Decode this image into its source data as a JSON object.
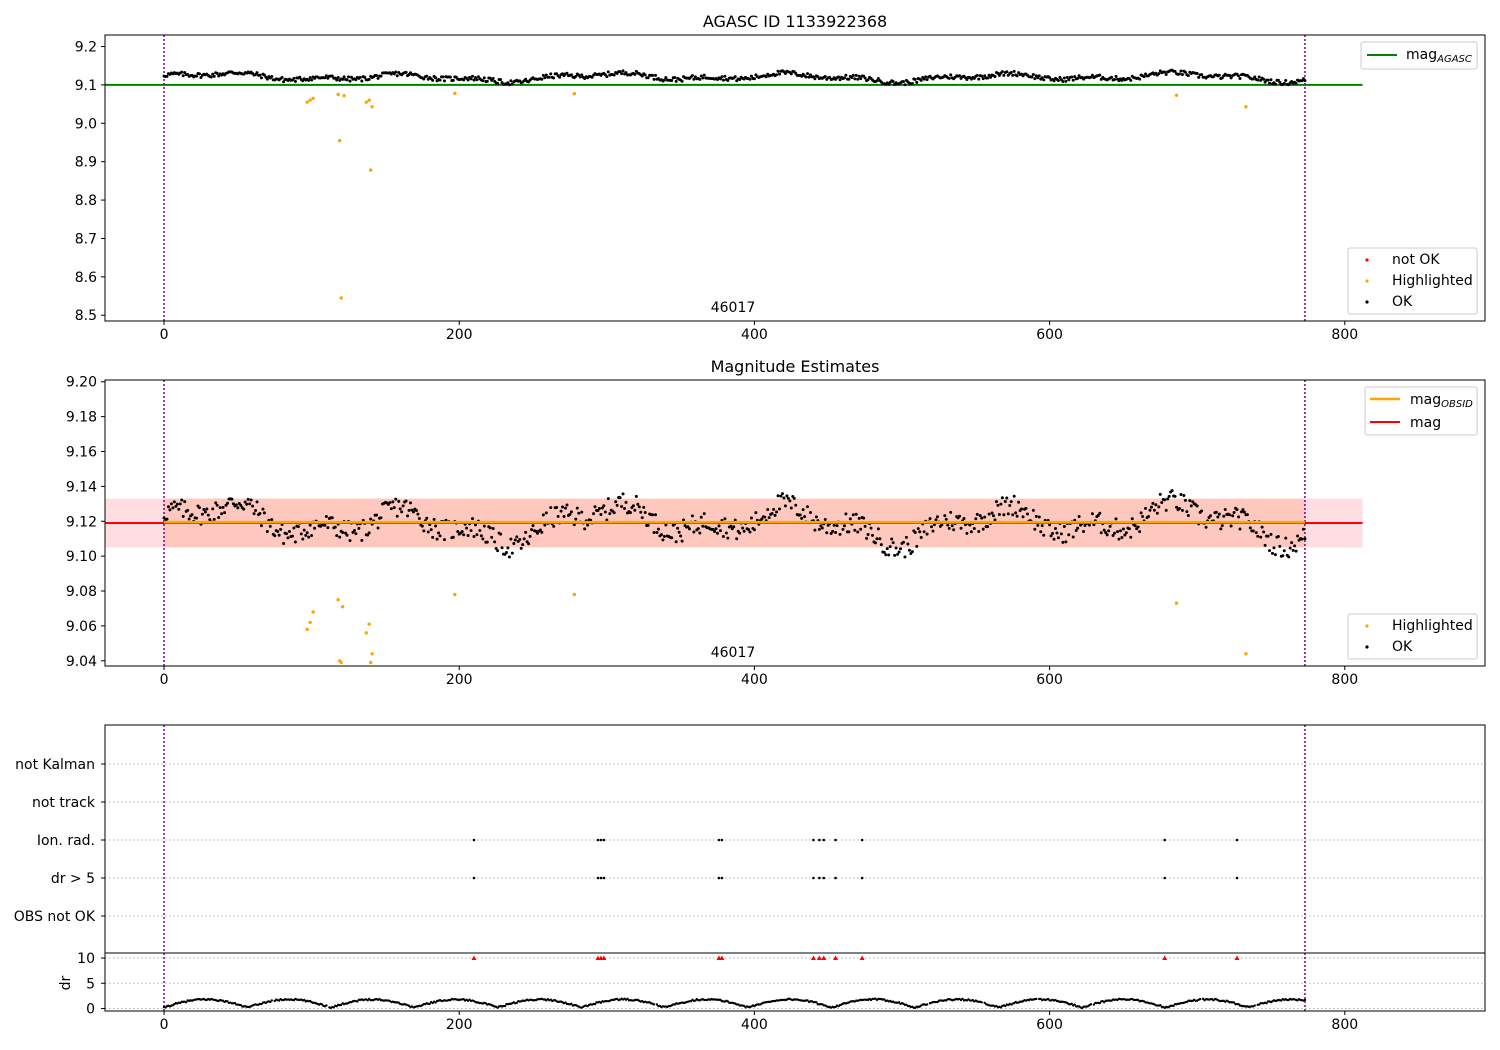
{
  "panel1": {
    "title": "AGASC ID 1133922368",
    "obsid_label": "46017",
    "legend_line": {
      "label": "mag",
      "subscript": "AGASC",
      "color": "#008000"
    },
    "legend_points": [
      {
        "label": "not OK",
        "color": "#ff0000"
      },
      {
        "label": "Highlighted",
        "color": "#ffa500"
      },
      {
        "label": "OK",
        "color": "#000000"
      }
    ],
    "y_ticks": [
      "9.2",
      "9.1",
      "9.0",
      "8.9",
      "8.8",
      "8.7",
      "8.6",
      "8.5"
    ],
    "x_ticks": [
      "0",
      "200",
      "400",
      "600",
      "800"
    ]
  },
  "panel2": {
    "title": "Magnitude Estimates",
    "obsid_label": "46017",
    "legend_lines": [
      {
        "label": "mag",
        "subscript": "OBSID",
        "color": "#ffa500"
      },
      {
        "label": "mag",
        "subscript": "",
        "color": "#ff0000"
      }
    ],
    "legend_points": [
      {
        "label": "Highlighted",
        "color": "#ffa500"
      },
      {
        "label": "OK",
        "color": "#000000"
      }
    ],
    "y_ticks": [
      "9.20",
      "9.18",
      "9.16",
      "9.14",
      "9.12",
      "9.10",
      "9.08",
      "9.06",
      "9.04"
    ],
    "x_ticks": [
      "0",
      "200",
      "400",
      "600",
      "800"
    ]
  },
  "panel3": {
    "flag_labels": [
      "not Kalman",
      "not track",
      "Ion. rad.",
      "dr > 5",
      "OBS not OK"
    ],
    "dr_label": "dr",
    "dr_ticks": [
      "10",
      "5",
      "0"
    ],
    "x_ticks": [
      "0",
      "200",
      "400",
      "600",
      "800"
    ]
  },
  "chart_data": [
    {
      "type": "scatter",
      "title": "AGASC ID 1133922368",
      "xlim": [
        -40,
        895
      ],
      "ylim": [
        8.485,
        9.23
      ],
      "vlines_x": [
        0,
        773
      ],
      "hline": {
        "name": "mag_AGASC",
        "y": 9.1,
        "x_range": [
          -40,
          812
        ]
      },
      "annotation": {
        "text": "46017",
        "x": 386,
        "y": 8.51
      },
      "ok_baseline": {
        "x_range": [
          0,
          773
        ],
        "mean": 9.12,
        "amplitude": 0.013
      },
      "highlighted_points": [
        [
          97,
          9.055
        ],
        [
          99,
          9.06
        ],
        [
          101,
          9.065
        ],
        [
          118,
          9.075
        ],
        [
          119,
          8.955
        ],
        [
          120,
          8.545
        ],
        [
          122,
          9.072
        ],
        [
          137,
          9.055
        ],
        [
          139,
          9.06
        ],
        [
          140,
          8.878
        ],
        [
          141,
          9.043
        ],
        [
          197,
          9.078
        ],
        [
          278,
          9.077
        ],
        [
          686,
          9.073
        ],
        [
          733,
          9.043
        ]
      ],
      "not_ok_points": []
    },
    {
      "type": "scatter",
      "title": "Magnitude Estimates",
      "xlim": [
        -40,
        895
      ],
      "ylim": [
        9.037,
        9.201
      ],
      "vlines_x": [
        0,
        773
      ],
      "lines": [
        {
          "name": "mag_OBSID",
          "y": 9.1195,
          "x_range": [
            0,
            773
          ],
          "band": [
            9.105,
            9.133
          ]
        },
        {
          "name": "mag",
          "y": 9.119,
          "x_range": [
            -40,
            812
          ],
          "band": [
            9.105,
            9.133
          ]
        }
      ],
      "annotation": {
        "text": "46017",
        "x": 386,
        "y": 9.042
      },
      "ok_baseline": {
        "x_range": [
          0,
          773
        ],
        "mean": 9.119,
        "amplitude": 0.013
      },
      "highlighted_points": [
        [
          97,
          9.058
        ],
        [
          99,
          9.062
        ],
        [
          101,
          9.068
        ],
        [
          118,
          9.075
        ],
        [
          119,
          9.04
        ],
        [
          120,
          9.039
        ],
        [
          121,
          9.071
        ],
        [
          137,
          9.056
        ],
        [
          139,
          9.061
        ],
        [
          140,
          9.039
        ],
        [
          141,
          9.044
        ],
        [
          197,
          9.078
        ],
        [
          278,
          9.078
        ],
        [
          686,
          9.073
        ],
        [
          733,
          9.044
        ]
      ]
    },
    {
      "type": "scatter",
      "xlim": [
        -40,
        895
      ],
      "vlines_x": [
        0,
        773
      ],
      "categories": [
        "not Kalman",
        "not track",
        "Ion. rad.",
        "dr > 5",
        "OBS not OK"
      ],
      "flag_x": [
        210,
        294,
        296,
        298,
        376,
        378,
        440,
        444,
        447,
        455,
        473,
        678,
        727
      ],
      "flagged_categories": [
        "Ion. rad.",
        "dr > 5"
      ],
      "dr": {
        "ylim": [
          -0.5,
          11
        ],
        "x_range": [
          0,
          773
        ],
        "marker_y": 10,
        "marker_color": "#ff0000",
        "baseline_mean": 1.0
      }
    }
  ]
}
